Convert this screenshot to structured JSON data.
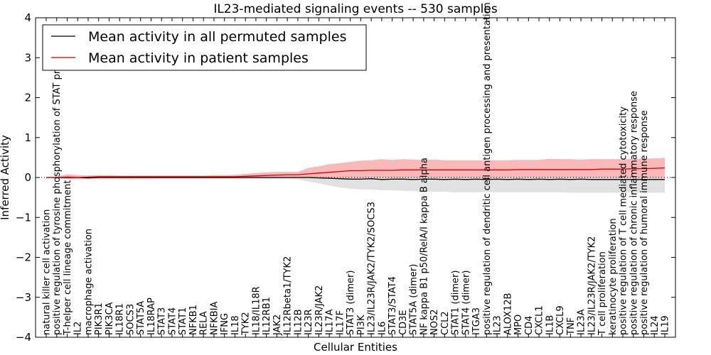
{
  "chart_data": {
    "type": "line",
    "title": "IL23-mediated signaling events -- 530 samples",
    "xlabel": "Cellular Entities",
    "ylabel": "Inferred Activity",
    "ylim": [
      -4,
      4
    ],
    "yticks": [
      -4,
      -3,
      -2,
      -1,
      0,
      1,
      2,
      3,
      4
    ],
    "grid": false,
    "legend_position": "top-left",
    "baseline": 0,
    "categories": [
      "natural killer cell activation",
      "positive regulation of tyrosine phosphorylation of STAT protein",
      "T-helper cell lineage commitment",
      "IL2",
      "macrophage activation",
      "PIK3R1",
      "PIK3CA",
      "IL18R1",
      "SOCS3",
      "STAT5A",
      "IL18RAP",
      "STAT3",
      "STAT4",
      "STAT1",
      "NFKB1",
      "RELA",
      "NFKBIA",
      "IFNG",
      "IL18",
      "TYK2",
      "IL18/IL18R",
      "IL12RB1",
      "JAK2",
      "IL12Rbeta1/TYK2",
      "IL12B",
      "IL23R",
      "IL23R/JAK2",
      "IL17A",
      "IL17F",
      "STAT3 (dimer)",
      "PI3K",
      "IL23/IL23R/JAK2/TYK2/SOCS3",
      "IL6",
      "STAT3/STAT4",
      "CD3E",
      "STAT5A (dimer)",
      "NF kappa B1 p50/RelA/I kappa B alpha",
      "NOS2",
      "CCL2",
      "STAT1 (dimer)",
      "STAT4 (dimer)",
      "ITGA3",
      "positive regulation of dendritic cell antigen processing and presentation",
      "IL23",
      "ALOX12B",
      "MPO",
      "CD4",
      "CXCL1",
      "IL1B",
      "CXCL9",
      "TNF",
      "IL23A",
      "IL23/IL23R/JAK2/TYK2",
      "T cell proliferation",
      "keratinocyte proliferation",
      "positive regulation of T cell mediated cytotoxicity",
      "positive regulation of chronic inflammatory response",
      "positive regulation of humoral immune response",
      "IL24",
      "IL19"
    ],
    "series": [
      {
        "name": "Mean activity in all permuted samples",
        "color": "#000000",
        "values": [
          0.0,
          0.0,
          0.0,
          0.0,
          -0.01,
          0.0,
          0.0,
          0.0,
          0.0,
          0.0,
          0.0,
          0.0,
          0.0,
          0.0,
          0.0,
          0.0,
          0.0,
          0.0,
          0.0,
          0.0,
          0.0,
          0.0,
          0.0,
          0.0,
          0.0,
          0.0,
          -0.01,
          -0.02,
          -0.03,
          -0.04,
          -0.04,
          -0.03,
          -0.05,
          -0.04,
          -0.04,
          -0.05,
          -0.04,
          -0.04,
          -0.05,
          -0.04,
          -0.05,
          -0.04,
          -0.05,
          -0.04,
          -0.05,
          -0.04,
          -0.05,
          -0.04,
          -0.05,
          -0.04,
          -0.05,
          -0.04,
          -0.05,
          -0.05,
          -0.05,
          -0.05,
          -0.05,
          -0.05,
          -0.05,
          -0.05
        ],
        "band_upper": [
          0.0,
          0.0,
          0.03,
          0.02,
          0.02,
          0.02,
          0.02,
          0.02,
          0.02,
          0.02,
          0.02,
          0.02,
          0.02,
          0.02,
          0.02,
          0.02,
          0.02,
          0.02,
          0.02,
          0.02,
          0.02,
          0.02,
          0.02,
          0.02,
          0.02,
          0.03,
          0.03,
          0.02,
          0.02,
          0.02,
          0.02,
          0.02,
          0.02,
          0.02,
          0.02,
          0.02,
          0.02,
          0.02,
          0.02,
          0.02,
          0.02,
          0.02,
          0.02,
          0.02,
          0.02,
          0.02,
          0.02,
          0.02,
          0.02,
          0.02,
          0.02,
          0.02,
          0.02,
          0.02,
          0.02,
          0.02,
          0.02,
          0.02,
          0.02,
          0.02
        ],
        "band_lower": [
          0.0,
          0.0,
          -0.03,
          -0.04,
          -0.05,
          -0.05,
          -0.05,
          -0.05,
          -0.06,
          -0.05,
          -0.05,
          -0.04,
          -0.04,
          -0.04,
          -0.04,
          -0.04,
          -0.04,
          -0.04,
          -0.04,
          -0.04,
          -0.04,
          -0.04,
          -0.04,
          -0.04,
          -0.05,
          -0.1,
          -0.15,
          -0.2,
          -0.25,
          -0.28,
          -0.3,
          -0.3,
          -0.32,
          -0.32,
          -0.33,
          -0.34,
          -0.35,
          -0.36,
          -0.36,
          -0.37,
          -0.37,
          -0.37,
          -0.37,
          -0.37,
          -0.37,
          -0.37,
          -0.37,
          -0.37,
          -0.37,
          -0.37,
          -0.38,
          -0.38,
          -0.38,
          -0.38,
          -0.38,
          -0.38,
          -0.38,
          -0.38,
          -0.38,
          -0.38
        ]
      },
      {
        "name": "Mean activity in patient samples",
        "color": "#d40000",
        "values": [
          0.0,
          0.0,
          0.01,
          0.0,
          0.01,
          0.02,
          0.02,
          0.02,
          0.02,
          0.02,
          0.02,
          0.02,
          0.02,
          0.02,
          0.02,
          0.02,
          0.02,
          0.02,
          0.02,
          0.03,
          0.04,
          0.05,
          0.06,
          0.07,
          0.07,
          0.09,
          0.11,
          0.13,
          0.15,
          0.17,
          0.17,
          0.18,
          0.18,
          0.18,
          0.19,
          0.19,
          0.19,
          0.19,
          0.19,
          0.19,
          0.19,
          0.19,
          0.19,
          0.19,
          0.19,
          0.2,
          0.2,
          0.2,
          0.2,
          0.2,
          0.2,
          0.2,
          0.2,
          0.21,
          0.21,
          0.21,
          0.22,
          0.22,
          0.23,
          0.24
        ],
        "band_upper": [
          0.0,
          0.02,
          0.08,
          0.06,
          0.05,
          0.06,
          0.06,
          0.05,
          0.05,
          0.05,
          0.05,
          0.05,
          0.05,
          0.05,
          0.05,
          0.05,
          0.06,
          0.06,
          0.07,
          0.09,
          0.11,
          0.13,
          0.14,
          0.14,
          0.14,
          0.24,
          0.28,
          0.33,
          0.36,
          0.39,
          0.42,
          0.43,
          0.46,
          0.44,
          0.46,
          0.45,
          0.44,
          0.45,
          0.43,
          0.43,
          0.43,
          0.43,
          0.43,
          0.43,
          0.43,
          0.44,
          0.44,
          0.44,
          0.47,
          0.46,
          0.46,
          0.45,
          0.46,
          0.46,
          0.46,
          0.46,
          0.47,
          0.47,
          0.48,
          0.49
        ],
        "band_lower": [
          0.0,
          -0.02,
          -0.04,
          -0.03,
          -0.02,
          -0.01,
          -0.01,
          -0.01,
          -0.01,
          -0.01,
          -0.01,
          -0.01,
          -0.01,
          -0.01,
          -0.01,
          -0.01,
          -0.01,
          -0.01,
          -0.01,
          -0.01,
          0.0,
          0.0,
          0.0,
          0.0,
          0.0,
          0.0,
          0.0,
          0.0,
          0.0,
          0.0,
          0.0,
          0.0,
          0.0,
          0.0,
          0.0,
          0.0,
          0.0,
          0.0,
          0.0,
          0.0,
          0.0,
          0.0,
          0.0,
          0.0,
          0.0,
          0.0,
          0.0,
          0.0,
          0.0,
          0.0,
          0.0,
          0.0,
          0.0,
          0.0,
          0.0,
          0.0,
          0.0,
          0.0,
          0.0,
          0.0
        ]
      }
    ]
  }
}
